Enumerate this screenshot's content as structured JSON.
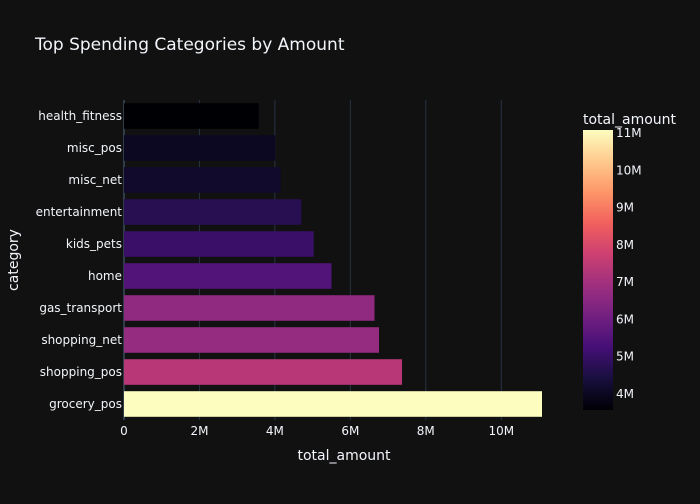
{
  "chart_data": {
    "type": "bar",
    "orientation": "horizontal",
    "title": "Top Spending Categories by Amount",
    "xlabel": "total_amount",
    "ylabel": "category",
    "categories": [
      "health_fitness",
      "misc_pos",
      "misc_net",
      "entertainment",
      "kids_pets",
      "home",
      "gas_transport",
      "shopping_net",
      "shopping_pos",
      "grocery_pos"
    ],
    "values": [
      3570000,
      4010000,
      4150000,
      4700000,
      5030000,
      5500000,
      6640000,
      6760000,
      7370000,
      11080000
    ],
    "xlim": [
      0,
      11080000
    ],
    "xticks": [
      0,
      2000000,
      4000000,
      6000000,
      8000000,
      10000000
    ],
    "xtick_labels": [
      "0",
      "2M",
      "4M",
      "6M",
      "8M",
      "10M"
    ],
    "grid": true,
    "colorscale": "magma",
    "colorbar": {
      "title": "total_amount",
      "range": [
        3570000,
        11080000
      ],
      "ticks": [
        4000000,
        5000000,
        6000000,
        7000000,
        8000000,
        9000000,
        10000000,
        11000000
      ],
      "tick_labels": [
        "4M",
        "5M",
        "6M",
        "7M",
        "8M",
        "9M",
        "10M",
        "11M"
      ]
    }
  }
}
